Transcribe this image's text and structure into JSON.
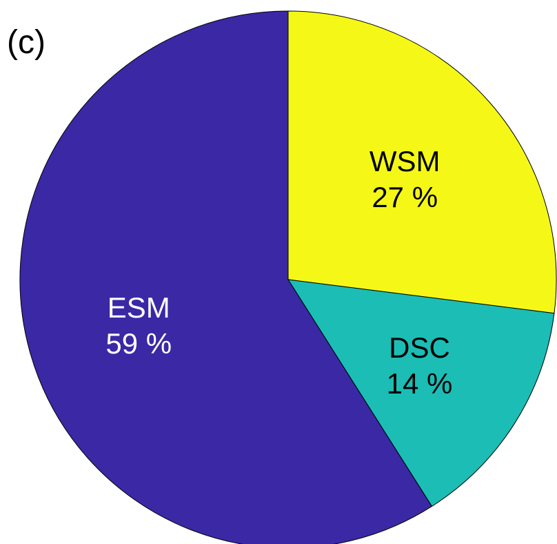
{
  "panel_label": "(c)",
  "chart_data": {
    "type": "pie",
    "title": "",
    "start": "top",
    "direction": "clockwise",
    "slices": [
      {
        "label": "WSM",
        "value": 27,
        "value_text": "27 %",
        "color": "#F5F816",
        "text_color": "#000000"
      },
      {
        "label": "DSC",
        "value": 14,
        "value_text": "14 %",
        "color": "#1BBDB5",
        "text_color": "#000000"
      },
      {
        "label": "ESM",
        "value": 59,
        "value_text": "59 %",
        "color": "#3A28A5",
        "text_color": "#ffffff"
      }
    ]
  }
}
